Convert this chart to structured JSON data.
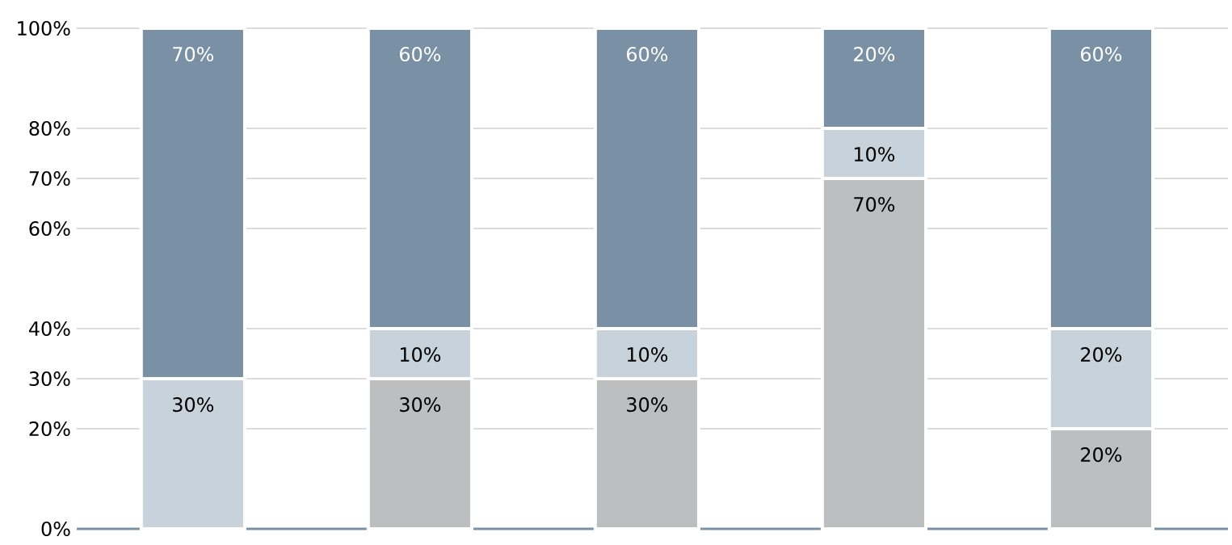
{
  "chart_data": {
    "type": "bar",
    "stacked": true,
    "categories": [
      null,
      null,
      null,
      null,
      null
    ],
    "series": [
      {
        "color": "#bdbec0",
        "values": [
          null,
          30,
          30,
          70,
          20
        ],
        "value_labels": [
          null,
          "30%",
          "30%",
          "70%",
          "20%"
        ]
      },
      {
        "color": "#c8d2db",
        "values": [
          30,
          10,
          10,
          10,
          20
        ],
        "value_labels": [
          "30%",
          "10%",
          "10%",
          "10%",
          "20%"
        ]
      },
      {
        "color": "#7990a5",
        "values": [
          70,
          60,
          60,
          20,
          60
        ],
        "value_labels": [
          "70%",
          "60%",
          "60%",
          "20%",
          "60%"
        ]
      }
    ],
    "ylim": [
      0,
      100
    ],
    "yticks": [
      {
        "value": 0,
        "label": "0%"
      },
      {
        "value": 20,
        "label": "20%"
      },
      {
        "value": 30,
        "label": "30%"
      },
      {
        "value": 40,
        "label": "40%"
      },
      {
        "value": 60,
        "label": "60%"
      },
      {
        "value": 70,
        "label": "70%"
      },
      {
        "value": 80,
        "label": "80%"
      },
      {
        "value": 100,
        "label": "100%"
      }
    ],
    "grid": "y"
  }
}
